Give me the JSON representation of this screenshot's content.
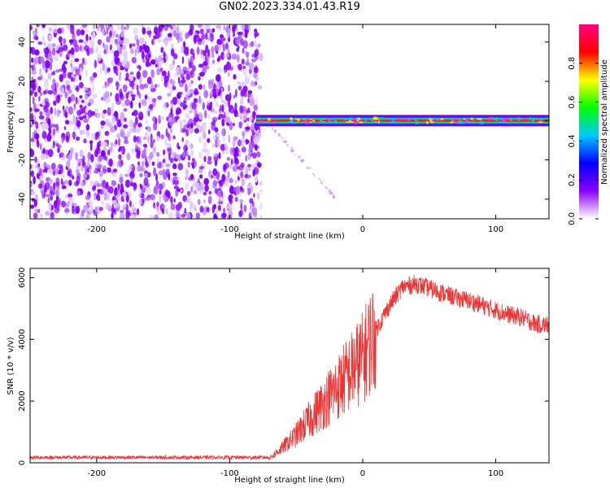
{
  "title": "GN02.2023.334.01.43.R19",
  "chart_data": [
    {
      "type": "heatmap",
      "title": "",
      "xlabel": "Height of straight line (km)",
      "ylabel": "Frequency (Hz)",
      "xlim": [
        -250,
        140
      ],
      "ylim": [
        -50,
        49
      ],
      "x_ticks": [
        -200,
        -100,
        0,
        100
      ],
      "y_ticks": [
        -40,
        -20,
        0,
        20,
        40
      ],
      "colorbar": {
        "label": "Normalized spectral amplitude",
        "range": [
          0,
          1
        ],
        "ticks": [
          "0.0",
          "0.2",
          "0.4",
          "0.6",
          "0.8"
        ],
        "colors": [
          "#ffffff",
          "#8a00ff",
          "#0000ff",
          "#00c8ff",
          "#00ff00",
          "#ffff00",
          "#ff0000",
          "#ff0080"
        ]
      },
      "noise_region_x": [
        -250,
        -80
      ],
      "signal_line": {
        "x": [
          -80,
          140
        ],
        "frequency": 0
      },
      "faint_branch": {
        "x": [
          -70,
          -20
        ],
        "frequency": [
          -2,
          -40
        ]
      }
    },
    {
      "type": "line",
      "title": "",
      "xlabel": "Height of straight line (km)",
      "ylabel": "SNR (10 * v/v)",
      "xlim": [
        -250,
        140
      ],
      "ylim": [
        0,
        6300
      ],
      "x_ticks": [
        -200,
        -100,
        0,
        100
      ],
      "y_ticks": [
        0,
        2000,
        4000,
        6000
      ],
      "series": [
        {
          "color": "#ee3333",
          "x": [
            -250,
            -200,
            -150,
            -100,
            -70,
            -60,
            -50,
            -40,
            -30,
            -20,
            -10,
            0,
            10,
            20,
            30,
            40,
            50,
            60,
            70,
            80,
            90,
            100,
            110,
            120,
            130,
            140
          ],
          "y": [
            150,
            150,
            150,
            150,
            150,
            500,
            900,
            1400,
            1900,
            2400,
            2900,
            3400,
            4300,
            5100,
            5700,
            5800,
            5650,
            5500,
            5350,
            5250,
            5100,
            4950,
            4800,
            4700,
            4500,
            4450
          ]
        }
      ]
    }
  ]
}
